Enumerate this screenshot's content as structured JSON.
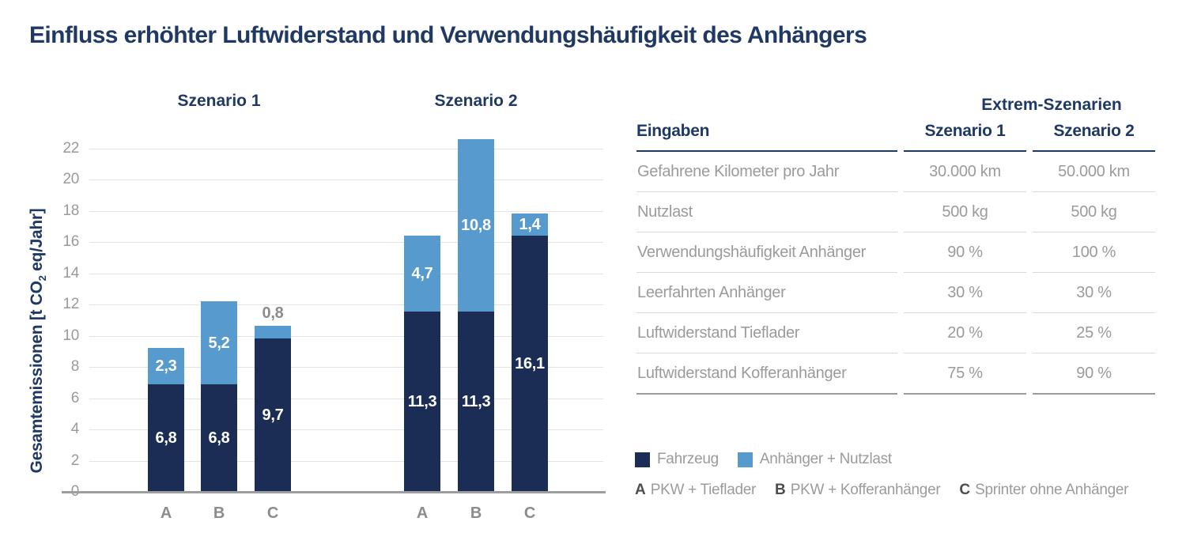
{
  "title": "Einfluss erhöhter Luftwiderstand und Verwendungshäufigkeit des Anhängers",
  "colors": {
    "navy_text": "#203964",
    "bar_dark": "#1b2d55",
    "bar_light": "#579ace",
    "gray_text": "#9b9b9b",
    "tick_gray": "#9a9a9a",
    "gridline": "#e3e3e3",
    "baseline": "#9e9e9e"
  },
  "chart_data": {
    "type": "bar",
    "stacked": true,
    "ylabel_prefix": "Gesamtemissionen [t CO",
    "ylabel_sub": "2",
    "ylabel_suffix": " eq/Jahr]",
    "ylim": [
      0,
      22
    ],
    "ytick_step": 2,
    "grid": true,
    "series": [
      {
        "name": "Fahrzeug",
        "color": "#1b2d55"
      },
      {
        "name": "Anhänger + Nutzlast",
        "color": "#579ace"
      }
    ],
    "groups": [
      {
        "title": "Szenario 1",
        "bars": [
          {
            "category": "A",
            "segments": [
              {
                "series": "Fahrzeug",
                "value": 6.8,
                "label": "6,8",
                "draw": 6.9
              },
              {
                "series": "Anhänger + Nutzlast",
                "value": 2.3,
                "label": "2,3",
                "draw": 2.35
              }
            ]
          },
          {
            "category": "B",
            "segments": [
              {
                "series": "Fahrzeug",
                "value": 6.8,
                "label": "6,8",
                "draw": 6.9
              },
              {
                "series": "Anhänger + Nutzlast",
                "value": 5.2,
                "label": "5,2",
                "draw": 5.3
              }
            ]
          },
          {
            "category": "C",
            "segments": [
              {
                "series": "Fahrzeug",
                "value": 9.7,
                "label": "9,7",
                "draw": 9.85
              },
              {
                "series": "Anhänger + Nutzlast",
                "value": 0.8,
                "label": "0,8",
                "draw": 0.8,
                "label_outside": true
              }
            ]
          }
        ]
      },
      {
        "title": "Szenario 2",
        "bars": [
          {
            "category": "A",
            "segments": [
              {
                "series": "Fahrzeug",
                "value": 11.3,
                "label": "11,3",
                "draw": 11.55
              },
              {
                "series": "Anhänger + Nutzlast",
                "value": 4.7,
                "label": "4,7",
                "draw": 4.85
              }
            ]
          },
          {
            "category": "B",
            "segments": [
              {
                "series": "Fahrzeug",
                "value": 11.3,
                "label": "11,3",
                "draw": 11.55
              },
              {
                "series": "Anhänger + Nutzlast",
                "value": 10.8,
                "label": "10,8",
                "draw": 11.05
              }
            ]
          },
          {
            "category": "C",
            "segments": [
              {
                "series": "Fahrzeug",
                "value": 16.1,
                "label": "16,1",
                "draw": 16.4
              },
              {
                "series": "Anhänger + Nutzlast",
                "value": 1.4,
                "label": "1,4",
                "draw": 1.45
              }
            ]
          }
        ]
      }
    ]
  },
  "table": {
    "group_header": "Extrem-Szenarien",
    "columns": [
      "Eingaben",
      "Szenario 1",
      "Szenario 2"
    ],
    "rows": [
      {
        "label": "Gefahrene Kilometer pro Jahr",
        "s1": "30.000 km",
        "s2": "50.000 km"
      },
      {
        "label": "Nutzlast",
        "s1": "500 kg",
        "s2": "500 kg"
      },
      {
        "label": "Verwendungshäufigkeit Anhänger",
        "s1": "90 %",
        "s2": "100 %"
      },
      {
        "label": "Leerfahrten Anhänger",
        "s1": "30 %",
        "s2": "30 %"
      },
      {
        "label": "Luftwiderstand Tieflader",
        "s1": "20 %",
        "s2": "25 %"
      },
      {
        "label": "Luftwiderstand Kofferanhänger",
        "s1": "75 %",
        "s2": "90 %"
      }
    ]
  },
  "legend": {
    "categories": [
      {
        "key": "A",
        "label": "PKW + Tieflader"
      },
      {
        "key": "B",
        "label": "PKW + Kofferanhänger"
      },
      {
        "key": "C",
        "label": "Sprinter ohne Anhänger"
      }
    ]
  }
}
